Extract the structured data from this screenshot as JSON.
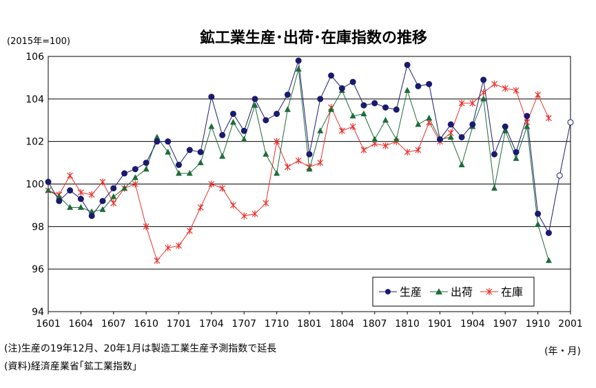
{
  "chart_data": {
    "type": "line",
    "title": "鉱工業生産･出荷･在庫指数の推移",
    "unit_label": "(2015年=100)",
    "x_unit_label": "(年・月)",
    "ylim": [
      94,
      106
    ],
    "yticks": [
      "106",
      "104",
      "102",
      "100",
      "98",
      "96",
      "94"
    ],
    "x_ticks": [
      "1601",
      "1604",
      "1607",
      "1610",
      "1701",
      "1704",
      "1707",
      "1710",
      "1801",
      "1804",
      "1807",
      "1810",
      "1901",
      "1904",
      "1907",
      "1910",
      "2001"
    ],
    "grid": "horizontal",
    "legend_position": "bottom-right",
    "series": [
      {
        "name": "生産",
        "color": "#1a1a6e",
        "marker": "circle",
        "values": [
          100.1,
          99.2,
          99.7,
          99.3,
          98.5,
          99.2,
          99.8,
          100.5,
          100.7,
          101.0,
          102.0,
          102.0,
          100.9,
          101.6,
          101.5,
          104.1,
          102.3,
          103.3,
          102.5,
          104.0,
          103.0,
          103.3,
          104.2,
          105.8,
          101.4,
          104.0,
          105.1,
          104.5,
          104.8,
          103.7,
          103.8,
          103.6,
          103.5,
          105.6,
          104.6,
          104.7,
          102.1,
          102.8,
          102.2,
          102.8,
          104.9,
          101.4,
          102.7,
          101.5,
          103.2,
          98.6,
          97.7
        ],
        "forecast_values": [
          null,
          null,
          null,
          null,
          null,
          null,
          null,
          null,
          null,
          null,
          null,
          null,
          null,
          null,
          null,
          null,
          null,
          null,
          null,
          null,
          null,
          null,
          null,
          null,
          null,
          null,
          null,
          null,
          null,
          null,
          null,
          null,
          null,
          null,
          null,
          null,
          null,
          null,
          null,
          null,
          null,
          null,
          null,
          null,
          null,
          null,
          97.7,
          100.4,
          102.9
        ]
      },
      {
        "name": "出荷",
        "color": "#1e6b3a",
        "marker": "triangle",
        "values": [
          99.7,
          99.4,
          98.9,
          98.9,
          98.7,
          98.8,
          99.4,
          99.8,
          100.3,
          100.7,
          102.2,
          101.5,
          100.5,
          100.5,
          101.0,
          102.7,
          101.3,
          102.9,
          102.1,
          103.7,
          101.4,
          100.5,
          103.5,
          105.4,
          100.7,
          102.5,
          103.5,
          104.4,
          103.2,
          103.3,
          102.1,
          103.0,
          102.1,
          104.4,
          102.8,
          103.1,
          102.1,
          102.2,
          100.9,
          102.7,
          104.0,
          99.8,
          102.5,
          101.2,
          102.7,
          98.1,
          96.4
        ]
      },
      {
        "name": "在庫",
        "color": "#e8302a",
        "marker": "asterisk",
        "values": [
          99.7,
          99.5,
          100.4,
          99.6,
          99.5,
          100.1,
          99.1,
          99.8,
          100.0,
          98.0,
          96.4,
          97.0,
          97.1,
          97.8,
          98.9,
          100.0,
          99.8,
          99.0,
          98.5,
          98.6,
          99.1,
          102.0,
          100.8,
          101.1,
          100.8,
          101.0,
          103.6,
          102.5,
          102.7,
          101.6,
          101.9,
          101.8,
          102.0,
          101.5,
          101.6,
          102.9,
          102.0,
          102.4,
          103.8,
          103.8,
          104.3,
          104.7,
          104.5,
          104.4,
          102.9,
          104.2,
          103.1
        ]
      }
    ]
  },
  "notes": {
    "line1": "(注)生産の19年12月、20年1月は製造工業生産予測指数で延長",
    "line2": "(資料)経済産業省｢鉱工業指数｣"
  }
}
